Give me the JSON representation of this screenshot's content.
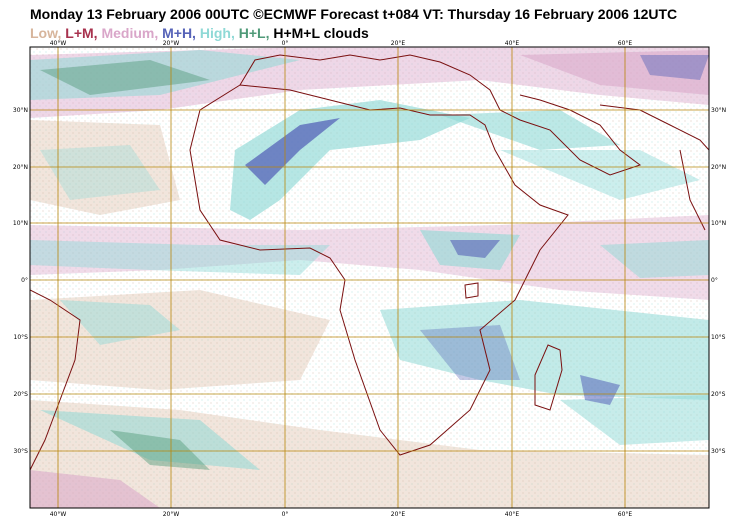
{
  "header": {
    "title": "Monday 13 February 2006 00UTC ©ECMWF Forecast t+084 VT: Thursday 16 February 2006 12UTC"
  },
  "legend": {
    "items": [
      {
        "label": "Low,",
        "color": "#d7b59c"
      },
      {
        "label": "L+M,",
        "color": "#a8324e"
      },
      {
        "label": "Medium,",
        "color": "#d9a6c9"
      },
      {
        "label": "M+H,",
        "color": "#5663b8"
      },
      {
        "label": "High,",
        "color": "#8fd9d6"
      },
      {
        "label": "H+L,",
        "color": "#4f9a78"
      },
      {
        "label": "H+M+L clouds",
        "color": "#000000"
      }
    ]
  },
  "map": {
    "longitude_labels": [
      "40°W",
      "20°W",
      "0°",
      "20°E",
      "40°E",
      "60°E"
    ],
    "latitude_labels_left": [
      "30°N",
      "20°N",
      "10°N",
      "0°",
      "10°S",
      "20°S",
      "30°S"
    ],
    "latitude_labels_right": [
      "30°N",
      "20°N",
      "10°N",
      "0°",
      "10°S",
      "20°S",
      "30°S"
    ],
    "grid_color": "#b8860b",
    "coast_color": "#7a1010"
  }
}
